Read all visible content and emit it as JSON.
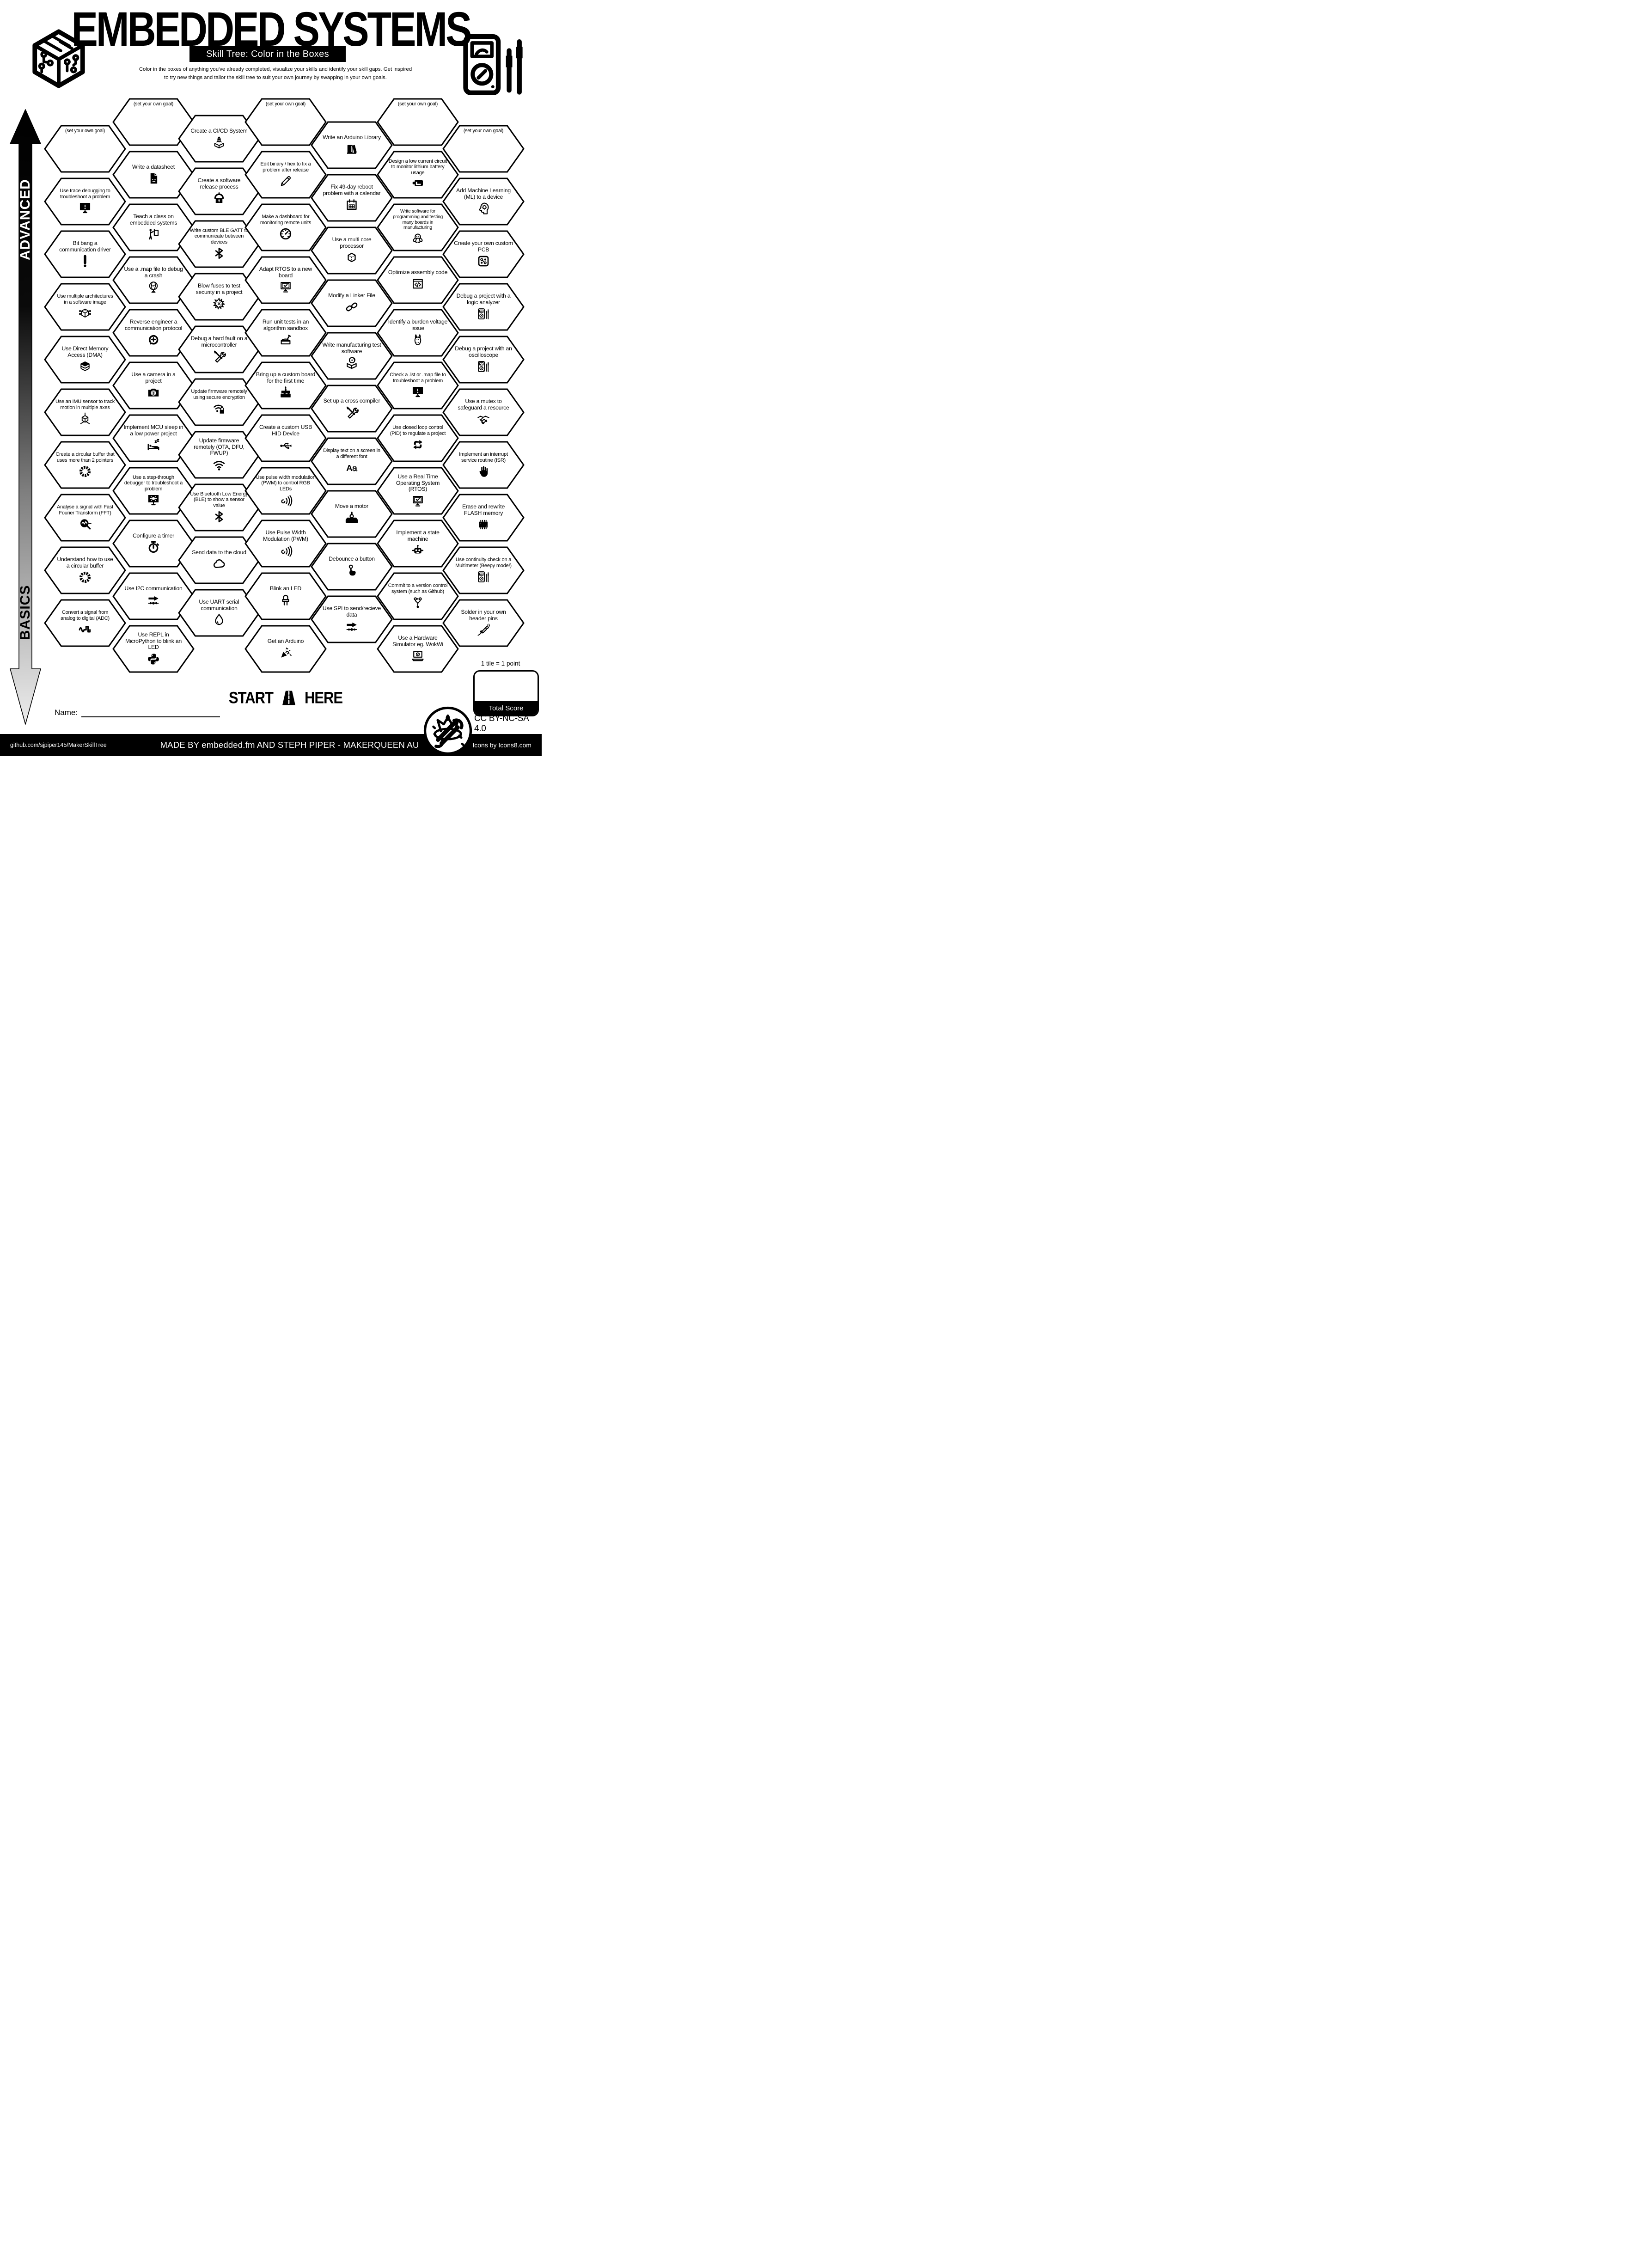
{
  "header": {
    "title": "EMBEDDED SYSTEMS",
    "subtitle": "Skill Tree: Color in the Boxes",
    "description_line1": "Color in the boxes of anything you've already completed, visualize your skills and identify your skill gaps.  Get inspired",
    "description_line2": "to try new things and tailor the skill tree to suit your own journey by swapping in your own goals.",
    "logo_left_icon": "circuit-cube-logo",
    "logo_right_icon": "multimeter-logo"
  },
  "axis": {
    "top_label": "ADVANCED",
    "bottom_label": "BASICS"
  },
  "skill_tree": {
    "goal_label": "(set your own goal)",
    "columns": [
      {
        "hexes": [
          {
            "label": "(set your own goal)",
            "goal": true
          },
          {
            "label": "Use trace debugging to troubleshoot a problem",
            "icon": "monitor-warn"
          },
          {
            "label": "Bit bang a communication driver",
            "icon": "exclaim"
          },
          {
            "label": "Use multiple architectures in a software image",
            "icon": "cube-circuit"
          },
          {
            "label": "Use Direct Memory Access (DMA)",
            "icon": "mem"
          },
          {
            "label": "Use an IMU sensor to track motion in multiple axes",
            "icon": "axes"
          },
          {
            "label": "Create a circular buffer that uses more than 2 pointers",
            "icon": "ring"
          },
          {
            "label": "Analyse a signal with Fast Fourier Transform (FFT)",
            "icon": "fft"
          },
          {
            "label": "Understand how to use a circular buffer",
            "icon": "ring"
          },
          {
            "label": "Convert a signal from analog to digital (ADC)",
            "icon": "adc"
          }
        ]
      },
      {
        "hexes": [
          {
            "label": "(set your own goal)",
            "goal": true
          },
          {
            "label": "Write a datasheet",
            "icon": "doc"
          },
          {
            "label": "Teach a class on embedded systems",
            "icon": "teach"
          },
          {
            "label": "Use a .map file to debug a crash",
            "icon": "globe"
          },
          {
            "label": "Reverse engineer a communication protocol",
            "icon": "revcomm"
          },
          {
            "label": "Use a camera in a project",
            "icon": "camera"
          },
          {
            "label": "Implement MCU sleep in a low power project",
            "icon": "bed"
          },
          {
            "label": "Use a step-through debugger to troubleshoot a problem",
            "icon": "monitor-bug"
          },
          {
            "label": "Configure a timer",
            "icon": "stopwatch"
          },
          {
            "label": "Use I2C communication",
            "icon": "bus"
          },
          {
            "label": "Use REPL in MicroPython to blink an LED",
            "icon": "python"
          }
        ]
      },
      {
        "hexes": [
          {
            "label": "Create a CI/CD System",
            "icon": "cicd"
          },
          {
            "label": "Create a software release process",
            "icon": "release"
          },
          {
            "label": "Write custom BLE GATT to communicate between devices",
            "icon": "bt"
          },
          {
            "label": "Blow fuses to test security in a project",
            "icon": "burst"
          },
          {
            "label": "Debug a hard fault on a microcontroller",
            "icon": "tools"
          },
          {
            "label": "Update firmware remotely using secure encryption",
            "icon": "wifilock"
          },
          {
            "label": "Update firmware remotely (OTA, DFU, FWUP)",
            "icon": "wifi"
          },
          {
            "label": "Use Bluetooth Low Energy (BLE) to show a sensor value",
            "icon": "bt"
          },
          {
            "label": "Send data to the cloud",
            "icon": "cloud"
          },
          {
            "label": "Use UART serial communication",
            "icon": "drop"
          }
        ]
      },
      {
        "hexes": [
          {
            "label": "(set your own goal)",
            "goal": true
          },
          {
            "label": "Edit binary / hex to fix a problem after release",
            "icon": "pencil"
          },
          {
            "label": "Make a dashboard for monitoring remote units",
            "icon": "gauge"
          },
          {
            "label": "Adapt RTOS to a new board",
            "icon": "moncheck"
          },
          {
            "label": "Run unit tests in an algorithm sandbox",
            "icon": "sandbox"
          },
          {
            "label": "Bring up a custom board for the first time",
            "icon": "cake"
          },
          {
            "label": "Create a custom USB HID Device",
            "icon": "usb"
          },
          {
            "label": "Use pulse width modulation (PWM) to control RGB LEDs",
            "icon": "pwm"
          },
          {
            "label": "Use Pulse Width Modulation (PWM)",
            "icon": "pwm"
          },
          {
            "label": "Blink an LED",
            "icon": "led"
          },
          {
            "label": "Get an Arduino",
            "icon": "party"
          }
        ]
      },
      {
        "hexes": [
          {
            "label": "Write an Arduino Library",
            "icon": "books"
          },
          {
            "label": "Fix 49-day reboot problem with a calendar",
            "icon": "cal"
          },
          {
            "label": "Use a multi core processor",
            "icon": "cube"
          },
          {
            "label": "Modify a Linker File",
            "icon": "chain"
          },
          {
            "label": "Write manufacturing test software",
            "icon": "boxdisc"
          },
          {
            "label": "Set up a cross compiler",
            "icon": "tools"
          },
          {
            "label": "Display text on a screen in a different font",
            "icon": "font"
          },
          {
            "label": "Move a motor",
            "icon": "motor"
          },
          {
            "label": "Debounce a button",
            "icon": "tap"
          },
          {
            "label": "Use SPI to send/recieve data",
            "icon": "bus"
          }
        ]
      },
      {
        "hexes": [
          {
            "label": "(set your own goal)",
            "goal": true
          },
          {
            "label": "Design a low current circuit to monitor lithium battery usage",
            "icon": "batt"
          },
          {
            "label": "Write software for programming and testing many boards in manufacturing",
            "icon": "octo"
          },
          {
            "label": "Optimize assembly code",
            "icon": "codewin"
          },
          {
            "label": "Identify a burden voltage issue",
            "icon": "donkey"
          },
          {
            "label": "Check a .lst or .map file to troubleshoot a problem",
            "icon": "monitor-warn"
          },
          {
            "label": "Use closed loop control (PID) to regulate a project",
            "icon": "pid"
          },
          {
            "label": "Use a Real Time Operating System (RTOS)",
            "icon": "moncheck"
          },
          {
            "label": "Implement a state machine",
            "icon": "robot"
          },
          {
            "label": "Commit to a version control system (such as Github)",
            "icon": "git"
          },
          {
            "label": "Use a Hardware Simulator eg. WokWi",
            "icon": "laptop"
          }
        ]
      },
      {
        "hexes": [
          {
            "label": "(set your own goal)",
            "goal": true
          },
          {
            "label": "Add Machine Learning (ML) to a device",
            "icon": "mlhead"
          },
          {
            "label": "Create your own custom PCB",
            "icon": "pcb"
          },
          {
            "label": "Debug a project with a logic analyzer",
            "icon": "meter"
          },
          {
            "label": "Debug a project with an oscilloscope",
            "icon": "meter"
          },
          {
            "label": "Use a mutex to safeguard a resource",
            "icon": "shake"
          },
          {
            "label": "Implement an interrupt service routine (ISR)",
            "icon": "hand"
          },
          {
            "label": "Erase and rewrite FLASH memory",
            "icon": "chip"
          },
          {
            "label": "Use continuity check on a Multimeter (Beepy mode!)",
            "icon": "meter"
          },
          {
            "label": "Solder in your own header pins",
            "icon": "solder"
          }
        ]
      }
    ]
  },
  "start_marker": {
    "left_word": "START",
    "right_word": "HERE",
    "icon": "road-icon"
  },
  "scoring": {
    "note": "1 tile = 1 point",
    "box_label": "Total Score"
  },
  "name_field": {
    "label": "Name:"
  },
  "license": {
    "text": "CC BY-NC-SA 4.0",
    "icon": "crown-tools-logo"
  },
  "footer": {
    "left": "github.com/sjpiper145/MakerSkillTree",
    "center": "MADE BY embedded.fm AND STEPH PIPER  -  MAKERQUEEN AU",
    "right": "Icons by Icons8.com"
  },
  "colors": {
    "ink": "#000000",
    "paper": "#ffffff"
  }
}
